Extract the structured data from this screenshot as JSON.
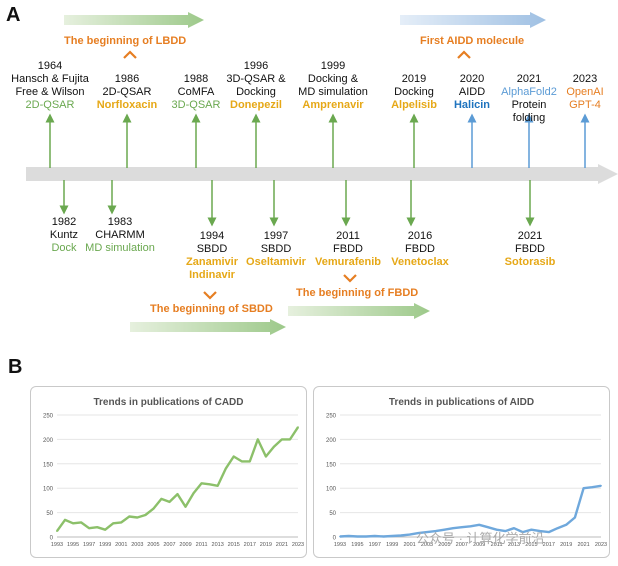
{
  "panels": {
    "a": "A",
    "b": "B"
  },
  "milestones": {
    "lbdd": "The beginning of LBDD",
    "aidd": "First AIDD molecule",
    "sbdd": "The beginning of SBDD",
    "fbdd": "The beginning of FBDD"
  },
  "top_events": [
    {
      "year": "1964",
      "lines": [
        "Hansch & Fujita",
        "Free & Wilson"
      ],
      "tag": "2D-QSAR",
      "tag_color": "green"
    },
    {
      "year": "1986",
      "lines": [
        "2D-QSAR"
      ],
      "tag": "Norfloxacin",
      "tag_color": "gold"
    },
    {
      "year": "1988",
      "lines": [
        "CoMFA"
      ],
      "tag": "3D-QSAR",
      "tag_color": "green"
    },
    {
      "year": "1996",
      "lines": [
        "3D-QSAR &",
        "Docking"
      ],
      "tag": "Donepezil",
      "tag_color": "gold"
    },
    {
      "year": "1999",
      "lines": [
        "Docking &",
        "MD simulation"
      ],
      "tag": "Amprenavir",
      "tag_color": "gold"
    },
    {
      "year": "2019",
      "lines": [
        "Docking"
      ],
      "tag": "Alpelisib",
      "tag_color": "gold"
    },
    {
      "year": "2020",
      "lines": [
        "AIDD"
      ],
      "tag": "Halicin",
      "tag_color": "blue"
    },
    {
      "year": "2021",
      "lines": [
        "AlphaFold2",
        "Protein",
        "folding"
      ],
      "tag": "",
      "tag_color": "lightblue"
    },
    {
      "year": "2023",
      "lines": [
        "OpenAI",
        "GPT-4"
      ],
      "tag": "",
      "tag_color": "orange"
    }
  ],
  "bottom_events": [
    {
      "year": "1982",
      "lines": [
        "Kuntz"
      ],
      "tags": [
        "Dock"
      ],
      "tag_color": "green"
    },
    {
      "year": "1983",
      "lines": [
        "CHARMM"
      ],
      "tags": [
        "MD simulation"
      ],
      "tag_color": "green"
    },
    {
      "year": "1994",
      "lines": [
        "SBDD"
      ],
      "tags": [
        "Zanamivir",
        "Indinavir"
      ],
      "tag_color": "gold"
    },
    {
      "year": "1997",
      "lines": [
        "SBDD"
      ],
      "tags": [
        "Oseltamivir"
      ],
      "tag_color": "gold"
    },
    {
      "year": "2011",
      "lines": [
        "FBDD"
      ],
      "tags": [
        "Vemurafenib"
      ],
      "tag_color": "gold"
    },
    {
      "year": "2016",
      "lines": [
        "FBDD"
      ],
      "tags": [
        "Venetoclax"
      ],
      "tag_color": "gold"
    },
    {
      "year": "2021",
      "lines": [
        "FBDD"
      ],
      "tags": [
        "Sotorasib"
      ],
      "tag_color": "gold"
    }
  ],
  "watermark": "公众号 · 计算化学前沿",
  "chart_data": [
    {
      "type": "line",
      "title": "Trends in publications of CADD",
      "x": [
        1993,
        1994,
        1995,
        1996,
        1997,
        1998,
        1999,
        2000,
        2001,
        2002,
        2003,
        2004,
        2005,
        2006,
        2007,
        2008,
        2009,
        2010,
        2011,
        2012,
        2013,
        2014,
        2015,
        2016,
        2017,
        2018,
        2019,
        2020,
        2021,
        2022,
        2023
      ],
      "x_tick_labels": [
        "1993",
        "1995",
        "1997",
        "1999",
        "2001",
        "2003",
        "2005",
        "2007",
        "2009",
        "2011",
        "2013",
        "2015",
        "2017",
        "2019",
        "2021",
        "2023"
      ],
      "values": [
        12,
        35,
        28,
        30,
        18,
        20,
        15,
        28,
        30,
        42,
        40,
        45,
        58,
        78,
        72,
        88,
        62,
        90,
        110,
        108,
        105,
        140,
        165,
        155,
        155,
        200,
        165,
        185,
        200,
        200,
        225
      ],
      "ylim": [
        0,
        250
      ],
      "y_ticks": [
        0,
        50,
        100,
        150,
        200,
        250
      ],
      "color": "#8cc06a"
    },
    {
      "type": "line",
      "title": "Trends in publications of AIDD",
      "x": [
        1993,
        1994,
        1995,
        1996,
        1997,
        1998,
        1999,
        2000,
        2001,
        2002,
        2003,
        2004,
        2005,
        2006,
        2007,
        2008,
        2009,
        2010,
        2011,
        2012,
        2013,
        2014,
        2015,
        2016,
        2017,
        2018,
        2019,
        2020,
        2021,
        2022,
        2023
      ],
      "x_tick_labels": [
        "1993",
        "1995",
        "1997",
        "1999",
        "2001",
        "2003",
        "2005",
        "2007",
        "2009",
        "2011",
        "2013",
        "2015",
        "2017",
        "2019",
        "2021",
        "2023"
      ],
      "values": [
        1,
        2,
        1,
        1,
        2,
        1,
        2,
        3,
        5,
        8,
        10,
        12,
        15,
        18,
        20,
        22,
        25,
        20,
        15,
        12,
        18,
        10,
        15,
        12,
        10,
        18,
        25,
        40,
        100,
        102,
        105
      ],
      "ylim": [
        0,
        250
      ],
      "y_ticks": [
        0,
        50,
        100,
        150,
        200,
        250
      ],
      "color": "#6fa8dc"
    }
  ]
}
